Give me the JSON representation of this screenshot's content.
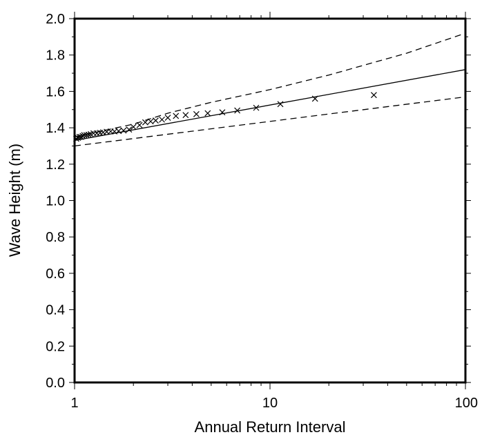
{
  "chart_data": {
    "type": "scatter",
    "title": "",
    "xlabel": "Annual Return Interval",
    "ylabel": "Wave Height (m)",
    "xscale": "log",
    "xlim": [
      1,
      100
    ],
    "ylim": [
      0.0,
      2.0
    ],
    "grid": false,
    "legend": "none",
    "x_tick_labels": [
      {
        "value": 1,
        "label": "1"
      },
      {
        "value": 10,
        "label": "10"
      },
      {
        "value": 100,
        "label": "100"
      }
    ],
    "y_tick_labels": [
      {
        "value": 0.0,
        "label": "0.0"
      },
      {
        "value": 0.2,
        "label": "0.2"
      },
      {
        "value": 0.4,
        "label": "0.4"
      },
      {
        "value": 0.6,
        "label": "0.6"
      },
      {
        "value": 0.8,
        "label": "0.8"
      },
      {
        "value": 1.0,
        "label": "1.0"
      },
      {
        "value": 1.2,
        "label": "1.2"
      },
      {
        "value": 1.4,
        "label": "1.4"
      },
      {
        "value": 1.6,
        "label": "1.6"
      },
      {
        "value": 1.8,
        "label": "1.8"
      },
      {
        "value": 2.0,
        "label": "2.0"
      }
    ],
    "series": [
      {
        "kind": "line",
        "style": "solid",
        "color": "#000000",
        "points": [
          [
            1,
            1.33
          ],
          [
            100,
            1.72
          ]
        ]
      },
      {
        "kind": "line",
        "style": "dashed",
        "color": "#000000",
        "points": [
          [
            1,
            1.35
          ],
          [
            2,
            1.42
          ],
          [
            3,
            1.48
          ],
          [
            5,
            1.54
          ],
          [
            10,
            1.61
          ],
          [
            20,
            1.69
          ],
          [
            50,
            1.81
          ],
          [
            100,
            1.92
          ]
        ]
      },
      {
        "kind": "line",
        "style": "dashed",
        "color": "#000000",
        "points": [
          [
            1,
            1.3
          ],
          [
            100,
            1.57
          ]
        ]
      },
      {
        "kind": "points",
        "marker": "x",
        "color": "#000000",
        "points": [
          [
            1.02,
            1.34
          ],
          [
            1.04,
            1.345
          ],
          [
            1.06,
            1.35
          ],
          [
            1.08,
            1.35
          ],
          [
            1.1,
            1.355
          ],
          [
            1.12,
            1.36
          ],
          [
            1.15,
            1.36
          ],
          [
            1.18,
            1.362
          ],
          [
            1.21,
            1.365
          ],
          [
            1.25,
            1.37
          ],
          [
            1.3,
            1.37
          ],
          [
            1.35,
            1.372
          ],
          [
            1.4,
            1.375
          ],
          [
            1.46,
            1.378
          ],
          [
            1.53,
            1.38
          ],
          [
            1.6,
            1.38
          ],
          [
            1.68,
            1.382
          ],
          [
            1.78,
            1.385
          ],
          [
            1.9,
            1.39
          ],
          [
            2.0,
            1.405
          ],
          [
            2.15,
            1.415
          ],
          [
            2.3,
            1.43
          ],
          [
            2.45,
            1.435
          ],
          [
            2.6,
            1.44
          ],
          [
            2.8,
            1.445
          ],
          [
            3.0,
            1.455
          ],
          [
            3.3,
            1.465
          ],
          [
            3.7,
            1.47
          ],
          [
            4.2,
            1.475
          ],
          [
            4.8,
            1.48
          ],
          [
            5.7,
            1.485
          ],
          [
            6.8,
            1.495
          ],
          [
            8.5,
            1.51
          ],
          [
            11.3,
            1.53
          ],
          [
            17,
            1.56
          ],
          [
            34,
            1.58
          ]
        ]
      }
    ]
  }
}
